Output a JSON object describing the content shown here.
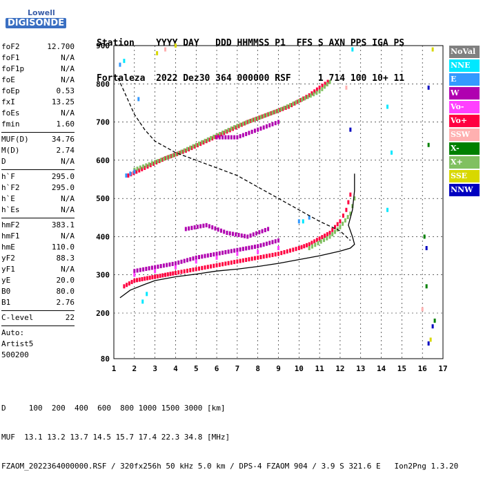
{
  "logo": {
    "top": "Lowell",
    "bottom": "DIGISONDE"
  },
  "header": {
    "row1": "Station    YYYY DAY   DDD HHMMSS P1  FFS S AXN PPS IGA PS",
    "row2": "Fortaleza  2022 Dez30 364 000000 RSF     1 714 100 10+ 11"
  },
  "params": [
    {
      "label": "foF2",
      "value": "12.700"
    },
    {
      "label": "foF1",
      "value": "N/A"
    },
    {
      "label": "foF1p",
      "value": "N/A"
    },
    {
      "label": "foE",
      "value": "N/A"
    },
    {
      "label": "foEp",
      "value": "0.53"
    },
    {
      "label": "fxI",
      "value": "13.25"
    },
    {
      "label": "foEs",
      "value": "N/A"
    },
    {
      "label": "fmin",
      "value": "1.60"
    },
    {
      "sep": true
    },
    {
      "label": "MUF(D)",
      "value": "34.76"
    },
    {
      "label": "M(D)",
      "value": "2.74"
    },
    {
      "label": "D",
      "value": "N/A"
    },
    {
      "sep": true
    },
    {
      "label": "h`F",
      "value": "295.0"
    },
    {
      "label": "h`F2",
      "value": "295.0"
    },
    {
      "label": "h`E",
      "value": "N/A"
    },
    {
      "label": "h`Es",
      "value": "N/A"
    },
    {
      "sep": true
    },
    {
      "label": "hmF2",
      "value": "383.1"
    },
    {
      "label": "hmF1",
      "value": "N/A"
    },
    {
      "label": "hmE",
      "value": "110.0"
    },
    {
      "label": "yF2",
      "value": "88.3"
    },
    {
      "label": "yF1",
      "value": "N/A"
    },
    {
      "label": "yE",
      "value": "20.0"
    },
    {
      "label": "B0",
      "value": "80.0"
    },
    {
      "label": "B1",
      "value": "2.76"
    },
    {
      "sep": true
    },
    {
      "label": "C-level",
      "value": "22"
    },
    {
      "sep": true
    },
    {
      "text": "Auto:"
    },
    {
      "text": "Artist5"
    },
    {
      "text": "500200"
    }
  ],
  "legend": [
    {
      "label": "NoVal",
      "color": "#808080"
    },
    {
      "label": "NNE",
      "color": "#00e8ff"
    },
    {
      "label": "E",
      "color": "#3399ff"
    },
    {
      "label": "W",
      "color": "#b000b0"
    },
    {
      "label": "Vo-",
      "color": "#ff40ff"
    },
    {
      "label": "Vo+",
      "color": "#ff0040"
    },
    {
      "label": "SSW",
      "color": "#ffb0b0"
    },
    {
      "label": "X-",
      "color": "#008000"
    },
    {
      "label": "X+",
      "color": "#80c060"
    },
    {
      "label": "SSE",
      "color": "#d8d800"
    },
    {
      "label": "NNW",
      "color": "#0000c0"
    }
  ],
  "footer": {
    "line1": "D     100  200  400  600  800 1000 1500 3000 [km]",
    "line2": "MUF  13.1 13.2 13.7 14.5 15.7 17.4 22.3 34.8 [MHz]",
    "line3": "FZAOM_2022364000000.RSF / 320fx256h 50 kHz 5.0 km / DPS-4 FZAOM 904 / 3.9 S 321.6 E   Ion2Png 1.3.20"
  },
  "chart_data": {
    "type": "scatter",
    "title": "",
    "xlabel": "",
    "ylabel": "",
    "xlim": [
      1,
      17
    ],
    "ylim": [
      80,
      900
    ],
    "x_ticks": [
      1,
      2,
      3,
      4,
      5,
      6,
      7,
      8,
      9,
      10,
      11,
      12,
      13,
      14,
      15,
      16,
      17
    ],
    "y_ticks": [
      80,
      200,
      300,
      400,
      500,
      600,
      700,
      800,
      900
    ],
    "grid": true,
    "series": [
      {
        "color": "#ff0040",
        "points": [
          [
            1.5,
            270
          ],
          [
            2.0,
            285
          ],
          [
            2.5,
            290
          ],
          [
            3.0,
            295
          ],
          [
            3.5,
            300
          ],
          [
            4.0,
            305
          ],
          [
            5.0,
            315
          ],
          [
            6.0,
            325
          ],
          [
            7.0,
            335
          ],
          [
            8.0,
            345
          ],
          [
            9.0,
            355
          ],
          [
            10.0,
            370
          ],
          [
            10.5,
            380
          ],
          [
            11.0,
            395
          ],
          [
            11.5,
            410
          ],
          [
            12.0,
            440
          ],
          [
            12.3,
            470
          ],
          [
            12.5,
            510
          ]
        ]
      },
      {
        "color": "#ff0040",
        "points": [
          [
            1.7,
            560
          ],
          [
            2.5,
            580
          ],
          [
            3.5,
            605
          ],
          [
            4.5,
            625
          ],
          [
            5.5,
            650
          ],
          [
            6.5,
            675
          ],
          [
            7.5,
            700
          ],
          [
            8.5,
            720
          ],
          [
            9.5,
            740
          ],
          [
            10.5,
            770
          ],
          [
            11.0,
            790
          ],
          [
            11.4,
            805
          ]
        ]
      },
      {
        "color": "#80c060",
        "points": [
          [
            2.0,
            575
          ],
          [
            3.0,
            595
          ],
          [
            4.0,
            615
          ],
          [
            5.0,
            640
          ],
          [
            6.0,
            665
          ],
          [
            7.0,
            690
          ],
          [
            8.0,
            710
          ],
          [
            9.0,
            730
          ],
          [
            10.0,
            755
          ],
          [
            11.0,
            780
          ],
          [
            11.5,
            805
          ],
          [
            10.5,
            370
          ],
          [
            11.5,
            400
          ],
          [
            12.0,
            425
          ],
          [
            12.5,
            460
          ],
          [
            12.7,
            500
          ]
        ]
      },
      {
        "color": "#b000b0",
        "points": [
          [
            2.0,
            310
          ],
          [
            3.0,
            320
          ],
          [
            4.0,
            330
          ],
          [
            5.0,
            345
          ],
          [
            6.0,
            355
          ],
          [
            7.0,
            365
          ],
          [
            8.0,
            375
          ],
          [
            9.0,
            390
          ],
          [
            4.5,
            420
          ],
          [
            5.5,
            430
          ],
          [
            6.5,
            410
          ],
          [
            7.5,
            400
          ],
          [
            8.5,
            420
          ],
          [
            6.0,
            660
          ],
          [
            7.0,
            660
          ],
          [
            8.0,
            680
          ],
          [
            9.0,
            700
          ]
        ]
      },
      {
        "color": "#ff40ff",
        "points": [
          [
            2.0,
            300
          ],
          [
            3.0,
            310
          ],
          [
            4.0,
            320
          ],
          [
            5.0,
            335
          ],
          [
            6.0,
            345
          ],
          [
            7.0,
            355
          ],
          [
            8.0,
            360
          ],
          [
            9.0,
            370
          ]
        ]
      },
      {
        "color": "#3399ff",
        "points": [
          [
            1.6,
            560
          ],
          [
            1.8,
            565
          ],
          [
            2.0,
            570
          ],
          [
            2.2,
            760
          ],
          [
            1.3,
            850
          ],
          [
            10.0,
            440
          ],
          [
            10.5,
            450
          ]
        ]
      },
      {
        "color": "#00e8ff",
        "points": [
          [
            1.5,
            860
          ],
          [
            2.4,
            230
          ],
          [
            2.6,
            250
          ],
          [
            10.2,
            440
          ],
          [
            14.3,
            740
          ],
          [
            14.5,
            620
          ],
          [
            14.3,
            470
          ],
          [
            12.6,
            890
          ]
        ]
      },
      {
        "color": "#008000",
        "points": [
          [
            16.3,
            640
          ],
          [
            16.2,
            270
          ],
          [
            16.1,
            400
          ],
          [
            16.6,
            180
          ]
        ]
      },
      {
        "color": "#0000c0",
        "points": [
          [
            16.3,
            790
          ],
          [
            16.2,
            370
          ],
          [
            16.3,
            120
          ],
          [
            16.5,
            165
          ],
          [
            12.5,
            680
          ]
        ]
      },
      {
        "color": "#d8d800",
        "points": [
          [
            16.5,
            890
          ],
          [
            16.4,
            130
          ],
          [
            3.1,
            880
          ],
          [
            4.0,
            900
          ]
        ]
      },
      {
        "color": "#ffb0b0",
        "points": [
          [
            16.0,
            210
          ],
          [
            12.3,
            790
          ],
          [
            3.5,
            890
          ]
        ]
      }
    ],
    "lines": [
      {
        "style": "dashed",
        "color": "#000000",
        "points": [
          [
            1.2,
            815
          ],
          [
            1.5,
            780
          ],
          [
            2.0,
            720
          ],
          [
            2.5,
            680
          ],
          [
            3.0,
            650
          ],
          [
            4.0,
            620
          ],
          [
            5.0,
            600
          ],
          [
            6.0,
            580
          ],
          [
            7.0,
            560
          ],
          [
            8.0,
            530
          ],
          [
            9.0,
            500
          ],
          [
            10.0,
            470
          ],
          [
            11.0,
            440
          ],
          [
            12.0,
            415
          ],
          [
            12.5,
            390
          ]
        ]
      },
      {
        "style": "solid",
        "color": "#000000",
        "points": [
          [
            1.3,
            240
          ],
          [
            1.8,
            260
          ],
          [
            2.5,
            275
          ],
          [
            3.0,
            285
          ],
          [
            4.0,
            295
          ],
          [
            5.0,
            302
          ],
          [
            6.0,
            310
          ],
          [
            7.0,
            315
          ],
          [
            8.0,
            322
          ],
          [
            9.0,
            330
          ],
          [
            10.0,
            340
          ],
          [
            11.0,
            350
          ],
          [
            12.0,
            362
          ],
          [
            12.5,
            370
          ],
          [
            12.7,
            380
          ],
          [
            12.6,
            400
          ],
          [
            12.4,
            430
          ],
          [
            12.6,
            470
          ],
          [
            12.7,
            520
          ],
          [
            12.7,
            565
          ]
        ]
      }
    ]
  }
}
